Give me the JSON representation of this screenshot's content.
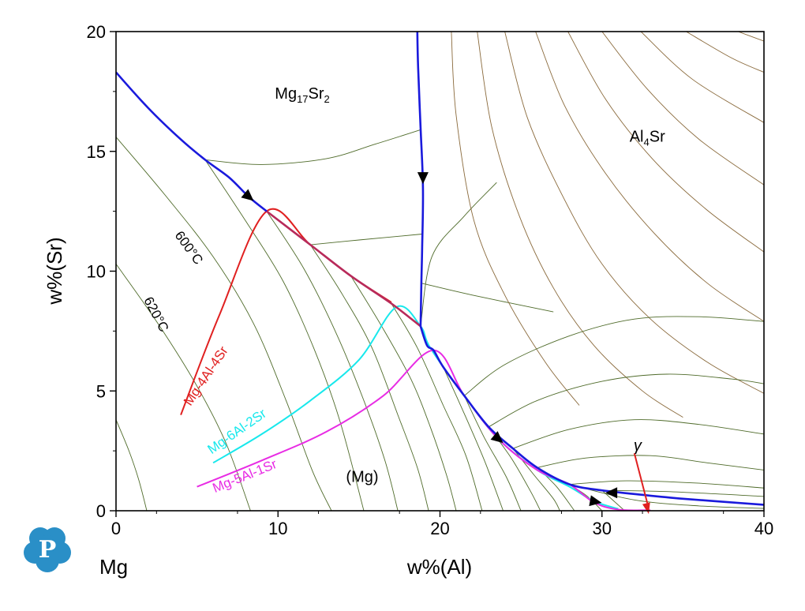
{
  "chart_data": {
    "type": "line",
    "title": "",
    "xlabel": "w%(Al)",
    "ylabel": "w%(Sr)",
    "xlim": [
      0,
      40
    ],
    "ylim": [
      0,
      20
    ],
    "x_ticks": [
      0,
      10,
      20,
      30,
      40
    ],
    "y_ticks": [
      0,
      5,
      10,
      15,
      20
    ],
    "corner_label": "Mg",
    "grid": false,
    "legend": "none",
    "colors": {
      "isotherm": "#4f6b2a",
      "isotherm_al4sr": "#8a6a3c",
      "boundary": "#1a1adc",
      "mg4al4sr": "#e02020",
      "mg6al2sr": "#18e8ec",
      "mg5al1sr": "#e82ce4",
      "gamma_arrow": "#e02020",
      "overlap_segment": "#b82a5a"
    },
    "region_labels": [
      {
        "text": "Mg17Sr2",
        "base": "Mg",
        "sub1": "17",
        "mid": "Sr",
        "sub2": "2",
        "x": 11.5,
        "y": 17.2
      },
      {
        "text": "Al4Sr",
        "base": "Al",
        "sub1": "4",
        "mid": "Sr",
        "sub2": "",
        "x": 32.8,
        "y": 15.4
      },
      {
        "text": "(Mg)",
        "base": "(Mg)",
        "sub1": "",
        "mid": "",
        "sub2": "",
        "x": 15.2,
        "y": 1.2
      },
      {
        "text": "γ",
        "base": "γ",
        "sub1": "",
        "mid": "",
        "sub2": "",
        "x": 32.2,
        "y": 2.5
      }
    ],
    "isotherm_labels": [
      {
        "text": "600°C",
        "x": 3.6,
        "y": 11.5,
        "angle": 54
      },
      {
        "text": "620°C",
        "x": 1.7,
        "y": 8.8,
        "angle": 62
      }
    ],
    "boundary_curves": [
      {
        "name": "",
        "points": [
          [
            0,
            18.3
          ],
          [
            2,
            16.8
          ],
          [
            4,
            15.5
          ],
          [
            5.5,
            14.65
          ],
          [
            7,
            13.9
          ],
          [
            8.2,
            13.1
          ],
          [
            9.3,
            12.5
          ]
        ]
      },
      {
        "name": "",
        "points": [
          [
            9.3,
            12.5
          ],
          [
            12,
            11.1
          ],
          [
            14.5,
            9.8
          ],
          [
            17,
            8.65
          ],
          [
            18.8,
            7.7
          ]
        ]
      },
      {
        "name": "",
        "points": [
          [
            18.6,
            20
          ],
          [
            18.65,
            18.5
          ],
          [
            18.8,
            16
          ],
          [
            18.95,
            13.5
          ],
          [
            18.9,
            11
          ],
          [
            18.85,
            9.5
          ],
          [
            18.8,
            7.7
          ]
        ]
      },
      {
        "name": "",
        "points": [
          [
            18.8,
            7.7
          ],
          [
            19.2,
            6.9
          ],
          [
            19.6,
            6.7
          ],
          [
            20.2,
            6.0
          ],
          [
            21.5,
            4.8
          ],
          [
            23,
            3.5
          ],
          [
            24.5,
            2.6
          ],
          [
            26,
            1.8
          ],
          [
            28,
            1.1
          ],
          [
            30,
            0.85
          ],
          [
            32,
            0.7
          ],
          [
            35,
            0.5
          ],
          [
            40,
            0.25
          ]
        ]
      }
    ],
    "series": [
      {
        "name": "Mg-4Al-4Sr",
        "color": "#e02020",
        "label_x": 4.6,
        "label_y": 4.35,
        "label_angle": -56,
        "points": [
          [
            4.0,
            4.0
          ],
          [
            6.4,
            8.2
          ],
          [
            9.3,
            12.5
          ],
          [
            12,
            11.1
          ],
          [
            14.5,
            9.8
          ],
          [
            17,
            8.7
          ]
        ]
      },
      {
        "name": "Mg-6Al-2Sr",
        "color": "#18e8ec",
        "label_x": 5.9,
        "label_y": 2.35,
        "label_angle": -35,
        "points": [
          [
            6.0,
            2.0
          ],
          [
            9,
            3.2
          ],
          [
            12,
            4.6
          ],
          [
            15,
            6.3
          ],
          [
            17.3,
            8.5
          ],
          [
            18.8,
            7.7
          ],
          [
            19.4,
            6.8
          ],
          [
            21.5,
            4.8
          ],
          [
            23.6,
            3.0
          ],
          [
            26,
            1.7
          ],
          [
            28,
            1.0
          ],
          [
            29.5,
            0.4
          ],
          [
            31,
            0.08
          ]
        ]
      },
      {
        "name": "Mg-5Al-1Sr",
        "color": "#e82ce4",
        "label_x": 6.1,
        "label_y": 0.75,
        "label_angle": -22,
        "points": [
          [
            5.0,
            1.0
          ],
          [
            9,
            2.1
          ],
          [
            13,
            3.3
          ],
          [
            16.5,
            4.8
          ],
          [
            19.6,
            6.7
          ],
          [
            21.5,
            4.8
          ],
          [
            23.6,
            3.0
          ],
          [
            26,
            1.7
          ],
          [
            28,
            1.1
          ],
          [
            29.5,
            0.35
          ],
          [
            31,
            0.05
          ],
          [
            33,
            0.02
          ]
        ]
      }
    ],
    "arrows": [
      {
        "x": 8.2,
        "y": 13.1,
        "dir": "down-right"
      },
      {
        "x": 18.95,
        "y": 13.9,
        "dir": "down"
      },
      {
        "x": 23.6,
        "y": 3.0,
        "dir": "down-right"
      },
      {
        "x": 29.6,
        "y": 0.38,
        "dir": "right"
      },
      {
        "x": 30.6,
        "y": 0.75,
        "dir": "left"
      }
    ],
    "gamma_arrow": {
      "from": [
        32.0,
        2.4
      ],
      "to": [
        32.8,
        0.12
      ]
    },
    "mg17sr2_isotherms": [
      [
        [
          5.5,
          14.65
        ],
        [
          9,
          14.45
        ],
        [
          13,
          14.7
        ],
        [
          16,
          15.3
        ],
        [
          18.8,
          15.9
        ]
      ],
      [
        [
          12,
          11.1
        ],
        [
          15,
          11.3
        ],
        [
          18.9,
          11.55
        ]
      ]
    ],
    "mg_isotherms": [
      [
        [
          0,
          15.6
        ],
        [
          3,
          13.2
        ],
        [
          6,
          10.6
        ],
        [
          8.5,
          7.8
        ],
        [
          10.5,
          4.6
        ],
        [
          12.1,
          1.7
        ],
        [
          13.3,
          0
        ]
      ],
      [
        [
          0,
          10.3
        ],
        [
          2.6,
          7.8
        ],
        [
          5,
          5.2
        ],
        [
          6.8,
          2.8
        ],
        [
          8.3,
          0
        ]
      ],
      [
        [
          0,
          3.8
        ],
        [
          0.8,
          2.5
        ],
        [
          1.4,
          1.3
        ],
        [
          1.9,
          0
        ]
      ],
      [
        [
          5.5,
          14.65
        ],
        [
          8,
          12.1
        ],
        [
          10.3,
          9.6
        ],
        [
          12.2,
          6.8
        ],
        [
          13.8,
          3.8
        ],
        [
          15.3,
          0
        ]
      ],
      [
        [
          9.3,
          12.5
        ],
        [
          11.6,
          10.1
        ],
        [
          13.6,
          7.4
        ],
        [
          15.3,
          4.6
        ],
        [
          16.6,
          2.1
        ],
        [
          17.4,
          0
        ]
      ],
      [
        [
          12,
          11.1
        ],
        [
          14,
          9.0
        ],
        [
          15.8,
          6.8
        ],
        [
          17.4,
          4.0
        ],
        [
          18.6,
          1.8
        ],
        [
          19.3,
          0
        ]
      ],
      [
        [
          14.5,
          9.8
        ],
        [
          16.4,
          7.7
        ],
        [
          18.2,
          5.5
        ],
        [
          19.4,
          3.5
        ],
        [
          20.4,
          1.5
        ],
        [
          21.0,
          0
        ]
      ],
      [
        [
          17,
          8.65
        ],
        [
          18.6,
          6.8
        ],
        [
          20.2,
          4.4
        ],
        [
          21.6,
          2.3
        ],
        [
          22.6,
          0
        ]
      ],
      [
        [
          20.2,
          6.0
        ],
        [
          21.6,
          3.9
        ],
        [
          22.8,
          2.0
        ],
        [
          23.9,
          0
        ]
      ],
      [
        [
          21.5,
          4.8
        ],
        [
          22.7,
          3.1
        ],
        [
          24.1,
          1.4
        ],
        [
          25.0,
          0
        ]
      ],
      [
        [
          23.0,
          3.5
        ],
        [
          24.4,
          2.2
        ],
        [
          25.6,
          0.8
        ],
        [
          26.2,
          0
        ]
      ],
      [
        [
          24.5,
          2.6
        ],
        [
          25.8,
          1.5
        ],
        [
          27.0,
          0.5
        ],
        [
          27.4,
          0
        ]
      ],
      [
        [
          26.0,
          1.8
        ],
        [
          27.2,
          1.0
        ],
        [
          28.3,
          0
        ]
      ],
      [
        [
          28.0,
          1.1
        ],
        [
          29.1,
          0.6
        ],
        [
          30.0,
          0
        ]
      ],
      [
        [
          30.0,
          0.85
        ],
        [
          31.4,
          0
        ]
      ]
    ],
    "al4sr_isotherms": [
      [
        [
          18.85,
          9.5
        ],
        [
          22,
          9.0
        ],
        [
          27,
          8.3
        ]
      ],
      [
        [
          18.8,
          7.7
        ],
        [
          19.5,
          10.6
        ],
        [
          21.5,
          12.3
        ],
        [
          23.5,
          13.7
        ]
      ],
      [
        [
          20.7,
          20
        ],
        [
          21,
          16.5
        ],
        [
          22.1,
          12.1
        ],
        [
          24,
          9.0
        ],
        [
          26.5,
          6.2
        ],
        [
          28.6,
          4.4
        ]
      ],
      [
        [
          22.3,
          20
        ],
        [
          23.2,
          16
        ],
        [
          24.9,
          12.3
        ],
        [
          27,
          9.3
        ],
        [
          29.5,
          6.9
        ],
        [
          32.5,
          5.0
        ],
        [
          35.0,
          3.9
        ]
      ],
      [
        [
          24.0,
          20
        ],
        [
          25.4,
          16.4
        ],
        [
          27.6,
          13.1
        ],
        [
          30.0,
          10.3
        ],
        [
          33,
          8.0
        ],
        [
          36.5,
          6.2
        ],
        [
          40,
          4.9
        ]
      ],
      [
        [
          25.9,
          20
        ],
        [
          27.7,
          16.9
        ],
        [
          30.2,
          14.1
        ],
        [
          33.2,
          11.6
        ],
        [
          36.5,
          9.5
        ],
        [
          40,
          7.9
        ]
      ],
      [
        [
          27.9,
          20
        ],
        [
          30.2,
          17.2
        ],
        [
          33.1,
          14.7
        ],
        [
          36.4,
          12.6
        ],
        [
          40,
          10.8
        ]
      ],
      [
        [
          30.0,
          20
        ],
        [
          32.8,
          17.6
        ],
        [
          36.0,
          15.5
        ],
        [
          40,
          13.6
        ]
      ],
      [
        [
          32.4,
          20
        ],
        [
          35.6,
          18.0
        ],
        [
          40,
          16.2
        ]
      ],
      [
        [
          35.2,
          20
        ],
        [
          38.0,
          18.9
        ],
        [
          40,
          18.3
        ]
      ],
      [
        [
          38.4,
          20
        ],
        [
          40,
          19.6
        ]
      ],
      [
        [
          26.0,
          1.8
        ],
        [
          29,
          2.2
        ],
        [
          33,
          2.3
        ],
        [
          36.5,
          2.0
        ],
        [
          40,
          1.7
        ]
      ],
      [
        [
          28.0,
          1.1
        ],
        [
          31.5,
          1.25
        ],
        [
          36,
          1.15
        ],
        [
          40,
          0.95
        ]
      ],
      [
        [
          24.5,
          2.6
        ],
        [
          28,
          3.4
        ],
        [
          32,
          3.8
        ],
        [
          36,
          3.6
        ],
        [
          40,
          3.2
        ]
      ],
      [
        [
          23.0,
          3.5
        ],
        [
          26,
          4.6
        ],
        [
          30,
          5.4
        ],
        [
          34,
          5.7
        ],
        [
          38,
          5.5
        ],
        [
          40,
          5.3
        ]
      ],
      [
        [
          21.5,
          4.8
        ],
        [
          24,
          6.1
        ],
        [
          28,
          7.3
        ],
        [
          32,
          8.0
        ],
        [
          36,
          8.1
        ],
        [
          40,
          7.9
        ]
      ],
      [
        [
          30.0,
          0.85
        ],
        [
          34,
          0.8
        ],
        [
          40,
          0.6
        ]
      ],
      [
        [
          28.0,
          1.1
        ],
        [
          32,
          0.45
        ],
        [
          36,
          0.2
        ],
        [
          40,
          0.1
        ]
      ]
    ]
  }
}
